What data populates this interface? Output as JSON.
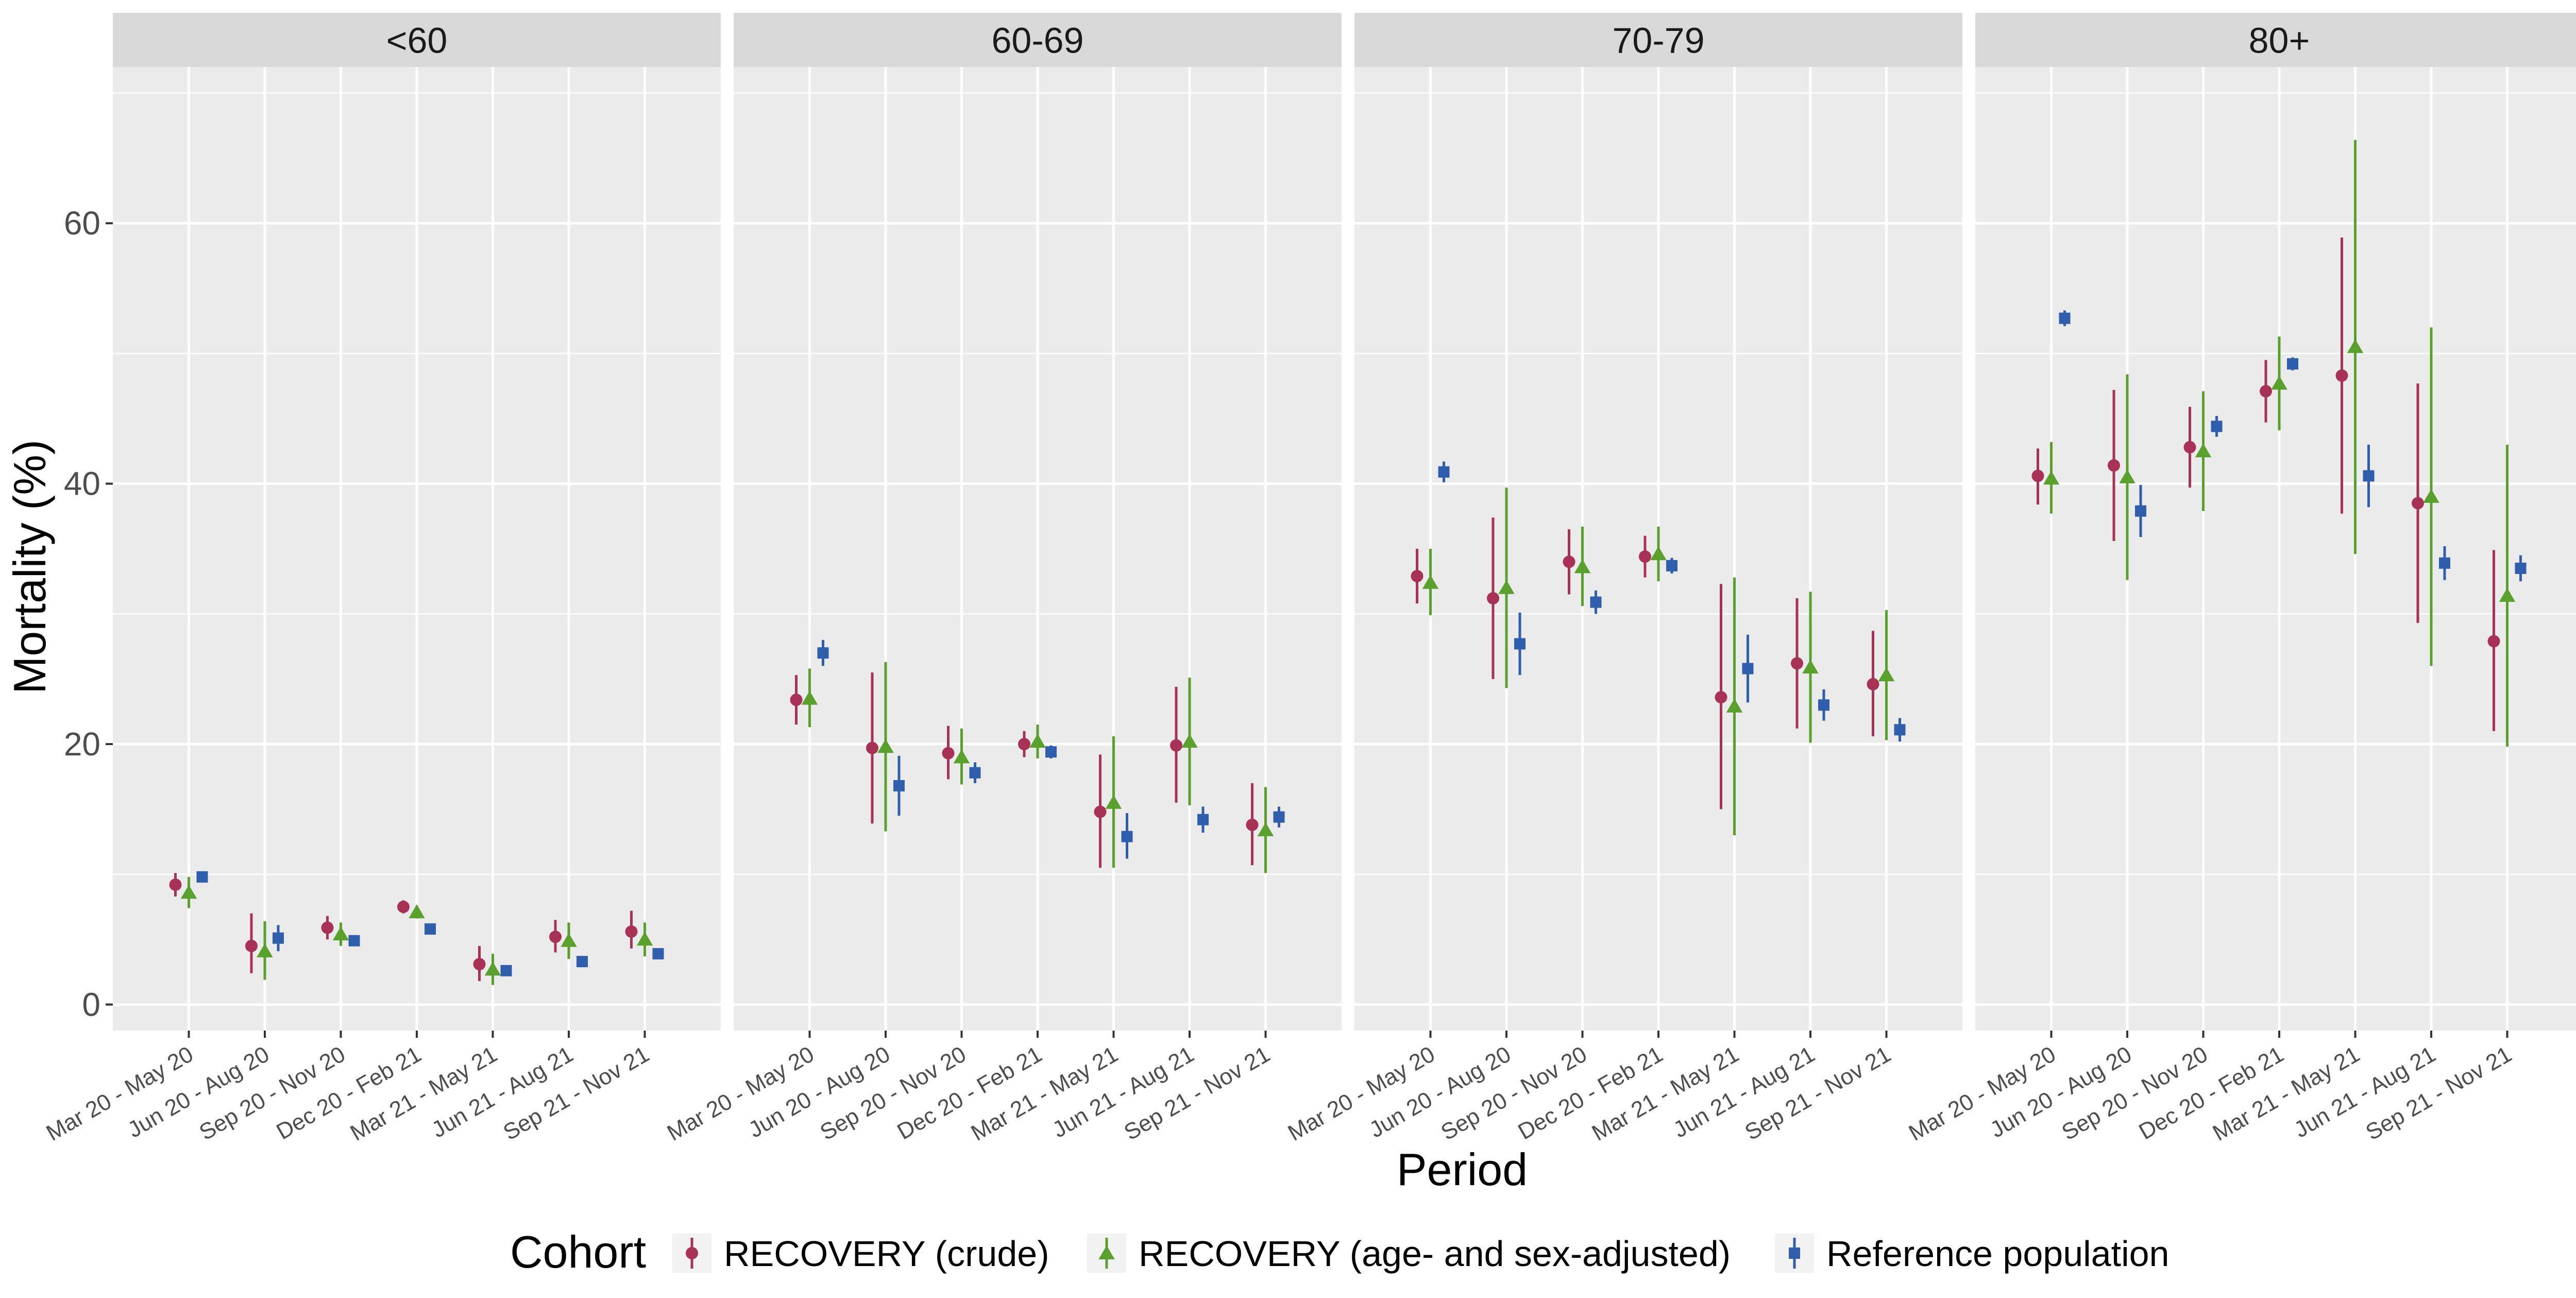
{
  "chart_data": {
    "type": "scatter",
    "subtype": "point-range faceted",
    "xlabel": "Period",
    "ylabel": "Mortality (%)",
    "ylim": [
      -2,
      72
    ],
    "yticks": [
      0,
      20,
      40,
      60
    ],
    "grid": true,
    "legend_title": "Cohort",
    "legend_position": "bottom",
    "periods": [
      "Mar 20 - May 20",
      "Jun 20 - Aug 20",
      "Sep 20 - Nov 20",
      "Dec 20 - Feb 21",
      "Mar 21 - May 21",
      "Jun 21 - Aug 21",
      "Sep 21 - Nov 21"
    ],
    "series": [
      {
        "name": "RECOVERY (crude)",
        "color": "#a83255",
        "shape": "circle"
      },
      {
        "name": "RECOVERY (age- and sex-adjusted)",
        "color": "#5aa02c",
        "shape": "triangle"
      },
      {
        "name": "Reference population",
        "color": "#2f5ead",
        "shape": "square"
      }
    ],
    "facets": [
      {
        "label": "<60",
        "values": [
          [
            [
              9.2,
              8.3,
              10.1
            ],
            [
              4.5,
              2.4,
              7.0
            ],
            [
              5.9,
              5.0,
              6.8
            ],
            [
              7.5,
              7.0,
              8.0
            ],
            [
              3.1,
              1.8,
              4.5
            ],
            [
              5.2,
              4.0,
              6.5
            ],
            [
              5.6,
              4.3,
              7.2
            ]
          ],
          [
            [
              8.6,
              7.4,
              9.8
            ],
            [
              4.1,
              1.9,
              6.4
            ],
            [
              5.4,
              4.5,
              6.3
            ],
            [
              7.1,
              6.6,
              7.6
            ],
            [
              2.7,
              1.5,
              3.9
            ],
            [
              4.9,
              3.5,
              6.3
            ],
            [
              5.0,
              3.7,
              6.3
            ]
          ],
          [
            [
              9.8,
              9.5,
              10.1
            ],
            [
              5.1,
              4.1,
              6.1
            ],
            [
              4.9,
              4.6,
              5.2
            ],
            [
              5.8,
              5.6,
              6.0
            ],
            [
              2.6,
              2.2,
              3.0
            ],
            [
              3.3,
              3.0,
              3.6
            ],
            [
              3.9,
              3.6,
              4.2
            ]
          ]
        ]
      },
      {
        "label": "60-69",
        "values": [
          [
            [
              23.4,
              21.5,
              25.3
            ],
            [
              19.7,
              13.9,
              25.5
            ],
            [
              19.3,
              17.3,
              21.4
            ],
            [
              20.0,
              19.0,
              21.0
            ],
            [
              14.8,
              10.5,
              19.2
            ],
            [
              19.9,
              15.5,
              24.4
            ],
            [
              13.8,
              10.7,
              17.0
            ]
          ],
          [
            [
              23.5,
              21.3,
              25.8
            ],
            [
              19.8,
              13.3,
              26.3
            ],
            [
              19.0,
              16.9,
              21.2
            ],
            [
              20.2,
              18.9,
              21.5
            ],
            [
              15.5,
              10.5,
              20.6
            ],
            [
              20.2,
              15.3,
              25.1
            ],
            [
              13.4,
              10.1,
              16.7
            ]
          ],
          [
            [
              27.0,
              26.0,
              28.0
            ],
            [
              16.8,
              14.5,
              19.1
            ],
            [
              17.8,
              17.0,
              18.6
            ],
            [
              19.4,
              18.9,
              19.9
            ],
            [
              12.9,
              11.2,
              14.7
            ],
            [
              14.2,
              13.2,
              15.2
            ],
            [
              14.4,
              13.6,
              15.2
            ]
          ]
        ]
      },
      {
        "label": "70-79",
        "values": [
          [
            [
              32.9,
              30.8,
              35.0
            ],
            [
              31.2,
              25.0,
              37.4
            ],
            [
              34.0,
              31.5,
              36.5
            ],
            [
              34.4,
              32.8,
              36.0
            ],
            [
              23.6,
              15.0,
              32.3
            ],
            [
              26.2,
              21.2,
              31.2
            ],
            [
              24.6,
              20.6,
              28.7
            ]
          ],
          [
            [
              32.4,
              29.9,
              35.0
            ],
            [
              32.0,
              24.3,
              39.7
            ],
            [
              33.6,
              30.6,
              36.7
            ],
            [
              34.6,
              32.5,
              36.7
            ],
            [
              22.9,
              13.0,
              32.8
            ],
            [
              25.9,
              20.1,
              31.7
            ],
            [
              25.3,
              20.3,
              30.3
            ]
          ],
          [
            [
              40.9,
              40.1,
              41.7
            ],
            [
              27.7,
              25.3,
              30.1
            ],
            [
              30.9,
              30.0,
              31.8
            ],
            [
              33.7,
              33.1,
              34.3
            ],
            [
              25.8,
              23.2,
              28.4
            ],
            [
              23.0,
              21.8,
              24.2
            ],
            [
              21.1,
              20.2,
              22.0
            ]
          ]
        ]
      },
      {
        "label": "80+",
        "values": [
          [
            [
              40.6,
              38.4,
              42.7
            ],
            [
              41.4,
              35.6,
              47.2
            ],
            [
              42.8,
              39.7,
              45.9
            ],
            [
              47.1,
              44.7,
              49.5
            ],
            [
              48.3,
              37.7,
              58.9
            ],
            [
              38.5,
              29.3,
              47.7
            ],
            [
              27.9,
              21.0,
              34.9
            ]
          ],
          [
            [
              40.4,
              37.7,
              43.2
            ],
            [
              40.5,
              32.6,
              48.4
            ],
            [
              42.5,
              37.9,
              47.1
            ],
            [
              47.7,
              44.1,
              51.3
            ],
            [
              50.5,
              34.6,
              66.4
            ],
            [
              39.0,
              26.0,
              52.0
            ],
            [
              31.4,
              19.8,
              43.0
            ]
          ],
          [
            [
              52.7,
              52.1,
              53.3
            ],
            [
              37.9,
              35.9,
              39.9
            ],
            [
              44.4,
              43.6,
              45.2
            ],
            [
              49.2,
              48.7,
              49.7
            ],
            [
              40.6,
              38.2,
              43.0
            ],
            [
              33.9,
              32.6,
              35.2
            ],
            [
              33.5,
              32.5,
              34.5
            ]
          ]
        ]
      }
    ]
  }
}
